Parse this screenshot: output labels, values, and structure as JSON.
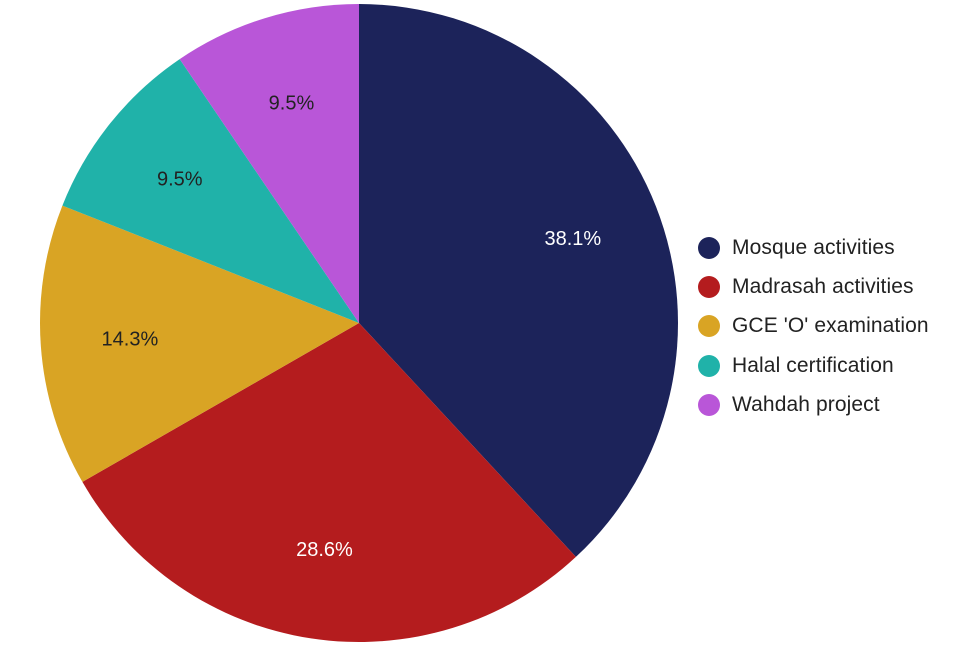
{
  "chart_data": {
    "type": "pie",
    "categories": [
      "Mosque activities",
      "Madrasah activities",
      "GCE 'O' examination",
      "Halal certification",
      "Wahdah project"
    ],
    "values": [
      38.1,
      28.6,
      14.3,
      9.5,
      9.5
    ],
    "labels": [
      "38.1%",
      "28.6%",
      "14.3%",
      "9.5%",
      "9.5%"
    ],
    "colors": [
      "#1c235a",
      "#b41c1e",
      "#d9a424",
      "#20b2a9",
      "#b956d8"
    ],
    "label_colors": [
      "#ffffff",
      "#ffffff",
      "#222222",
      "#222222",
      "#222222"
    ],
    "start_angle_deg": 0,
    "direction": "clockwise",
    "legend_position": "right"
  }
}
